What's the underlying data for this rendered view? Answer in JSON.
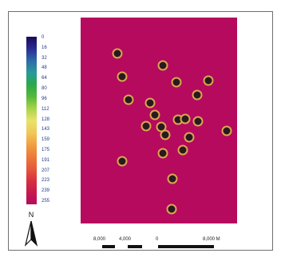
{
  "legend": {
    "labels": [
      "0",
      "16",
      "32",
      "48",
      "64",
      "80",
      "96",
      "112",
      "128",
      "143",
      "159",
      "175",
      "191",
      "207",
      "223",
      "239",
      "255"
    ],
    "gradient_colors": [
      "#1a0a5a",
      "#2a2b92",
      "#2e6aa8",
      "#2a9a9a",
      "#2aa84a",
      "#55b83a",
      "#a8d34a",
      "#e8e36a",
      "#f2c85a",
      "#f0a040",
      "#ec7a3a",
      "#e65a3a",
      "#d8303f",
      "#c61a4d",
      "#b50a5e"
    ]
  },
  "map": {
    "fill_color": "#b50a5e",
    "point_fill": "#2a1a1e",
    "point_ring": "#d9a64e"
  },
  "north": {
    "label": "N"
  },
  "scale_bar": {
    "labels": [
      "8,000",
      "4,000",
      "0",
      "8,000 M"
    ]
  }
}
